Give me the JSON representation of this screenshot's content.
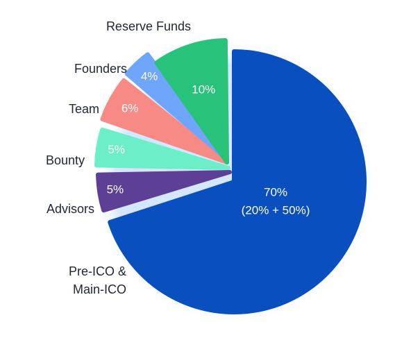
{
  "chart_data": {
    "type": "pie",
    "exploded": true,
    "slices": [
      {
        "name": "Pre-ICO &\nMain-ICO",
        "value": 70,
        "label": "70%",
        "sublabel": "(20% + 50%)",
        "color": "#0a4fbf"
      },
      {
        "name": "Advisors",
        "value": 5,
        "label": "5%",
        "color": "#5e3f96"
      },
      {
        "name": "Bounty",
        "value": 5,
        "label": "5%",
        "color": "#6cefc8"
      },
      {
        "name": "Team",
        "value": 6,
        "label": "6%",
        "color": "#f88a86"
      },
      {
        "name": "Founders",
        "value": 4,
        "label": "4%",
        "color": "#6ea6fb"
      },
      {
        "name": "Reserve Funds",
        "value": 10,
        "label": "10%",
        "color": "#28c27a"
      }
    ],
    "legend": "none"
  }
}
